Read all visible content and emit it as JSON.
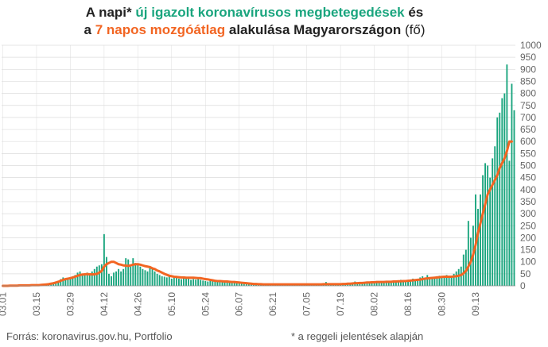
{
  "title": {
    "line1_prefix": "A napi*",
    "line1_highlight": "új igazolt koronavírusos megbetegedések",
    "line1_suffix": "és",
    "line2_prefix": "a",
    "line2_highlight": "7 napos mozgóátlag",
    "line2_mid": "alakulása Magyarországon",
    "line2_unit": "(fő)"
  },
  "footer": {
    "source": "Forrás: koronavirus.gov.hu, Portfolio",
    "note": "* a reggeli jelentések alapján"
  },
  "colors": {
    "bars": "#1aa57e",
    "average": "#f26522",
    "grid": "#dcdcdc",
    "text": "#222222",
    "axis_text": "#666666"
  },
  "chart_data": {
    "type": "bar",
    "ylim": [
      0,
      1000
    ],
    "yticks": [
      0,
      50,
      100,
      150,
      200,
      250,
      300,
      350,
      400,
      450,
      500,
      550,
      600,
      650,
      700,
      750,
      800,
      850,
      900,
      950,
      1000
    ],
    "y_axis_position": "right",
    "grid": true,
    "x_tick_labels": [
      "03.01",
      "03.15",
      "03.29",
      "04.12",
      "04.26",
      "05.10",
      "05.24",
      "06.07",
      "06.21",
      "07.05",
      "07.19",
      "08.02",
      "08.16",
      "08.30",
      "09.13"
    ],
    "start_date": "03.01",
    "series": [
      {
        "kind": "bar",
        "values": [
          0,
          0,
          0,
          1,
          1,
          2,
          2,
          2,
          2,
          3,
          3,
          2,
          3,
          4,
          3,
          3,
          5,
          6,
          8,
          10,
          12,
          15,
          18,
          20,
          28,
          35,
          25,
          30,
          33,
          40,
          45,
          55,
          60,
          45,
          50,
          55,
          45,
          60,
          70,
          80,
          85,
          90,
          215,
          120,
          50,
          40,
          55,
          60,
          70,
          60,
          70,
          115,
          110,
          80,
          115,
          95,
          90,
          80,
          70,
          65,
          60,
          75,
          70,
          60,
          50,
          45,
          40,
          38,
          35,
          40,
          30,
          35,
          33,
          30,
          28,
          35,
          30,
          30,
          25,
          28,
          26,
          28,
          25,
          22,
          20,
          18,
          25,
          22,
          20,
          18,
          15,
          16,
          15,
          18,
          16,
          15,
          14,
          14,
          12,
          10,
          10,
          8,
          8,
          8,
          7,
          9,
          6,
          5,
          6,
          5,
          4,
          5,
          6,
          8,
          7,
          6,
          5,
          6,
          7,
          8,
          7,
          5,
          5,
          7,
          6,
          8,
          7,
          6,
          5,
          7,
          6,
          5,
          6,
          7,
          16,
          8,
          6,
          7,
          5,
          6,
          5,
          8,
          9,
          10,
          8,
          15,
          18,
          12,
          10,
          12,
          15,
          14,
          18,
          15,
          16,
          18,
          14,
          15,
          20,
          18,
          16,
          18,
          22,
          20,
          18,
          25,
          22,
          20,
          18,
          22,
          30,
          28,
          25,
          35,
          40,
          30,
          45,
          35,
          30,
          35,
          40,
          42,
          38,
          40,
          45,
          40,
          35,
          50,
          60,
          70,
          80,
          130,
          150,
          270,
          200,
          250,
          380,
          320,
          380,
          460,
          510,
          500,
          450,
          530,
          580,
          700,
          720,
          780,
          800,
          920,
          520,
          840,
          730
        ]
      },
      {
        "kind": "line",
        "values": [
          0,
          0,
          0,
          1,
          1,
          1,
          1,
          2,
          2,
          2,
          2,
          2,
          3,
          3,
          3,
          3,
          4,
          5,
          6,
          7,
          9,
          11,
          14,
          17,
          21,
          25,
          28,
          30,
          32,
          35,
          38,
          42,
          45,
          47,
          48,
          49,
          48,
          48,
          48,
          50,
          55,
          62,
          80,
          90,
          95,
          100,
          100,
          95,
          90,
          88,
          85,
          84,
          83,
          85,
          88,
          90,
          90,
          88,
          85,
          82,
          80,
          78,
          73,
          70,
          64,
          60,
          55,
          50,
          46,
          42,
          40,
          38,
          37,
          36,
          35,
          35,
          34,
          34,
          34,
          34,
          33,
          32,
          32,
          30,
          28,
          27,
          25,
          23,
          21,
          20,
          20,
          19,
          18,
          18,
          17,
          16,
          16,
          15,
          14,
          13,
          12,
          11,
          10,
          9,
          8,
          8,
          7,
          7,
          6,
          6,
          6,
          6,
          6,
          6,
          6,
          6,
          6,
          6,
          6,
          6,
          6,
          6,
          6,
          6,
          6,
          6,
          6,
          6,
          6,
          6,
          6,
          6,
          6,
          7,
          7,
          7,
          7,
          7,
          7,
          7,
          7,
          8,
          8,
          9,
          9,
          10,
          11,
          11,
          12,
          12,
          13,
          14,
          14,
          15,
          15,
          16,
          16,
          16,
          16,
          17,
          17,
          17,
          18,
          18,
          19,
          19,
          20,
          20,
          21,
          22,
          23,
          24,
          25,
          26,
          28,
          30,
          31,
          32,
          33,
          34,
          35,
          36,
          37,
          38,
          38,
          38,
          38,
          39,
          40,
          42,
          45,
          52,
          62,
          80,
          100,
          130,
          170,
          220,
          260,
          300,
          340,
          380,
          400,
          420,
          440,
          460,
          490,
          510,
          530,
          560,
          600,
          600
        ]
      }
    ]
  }
}
